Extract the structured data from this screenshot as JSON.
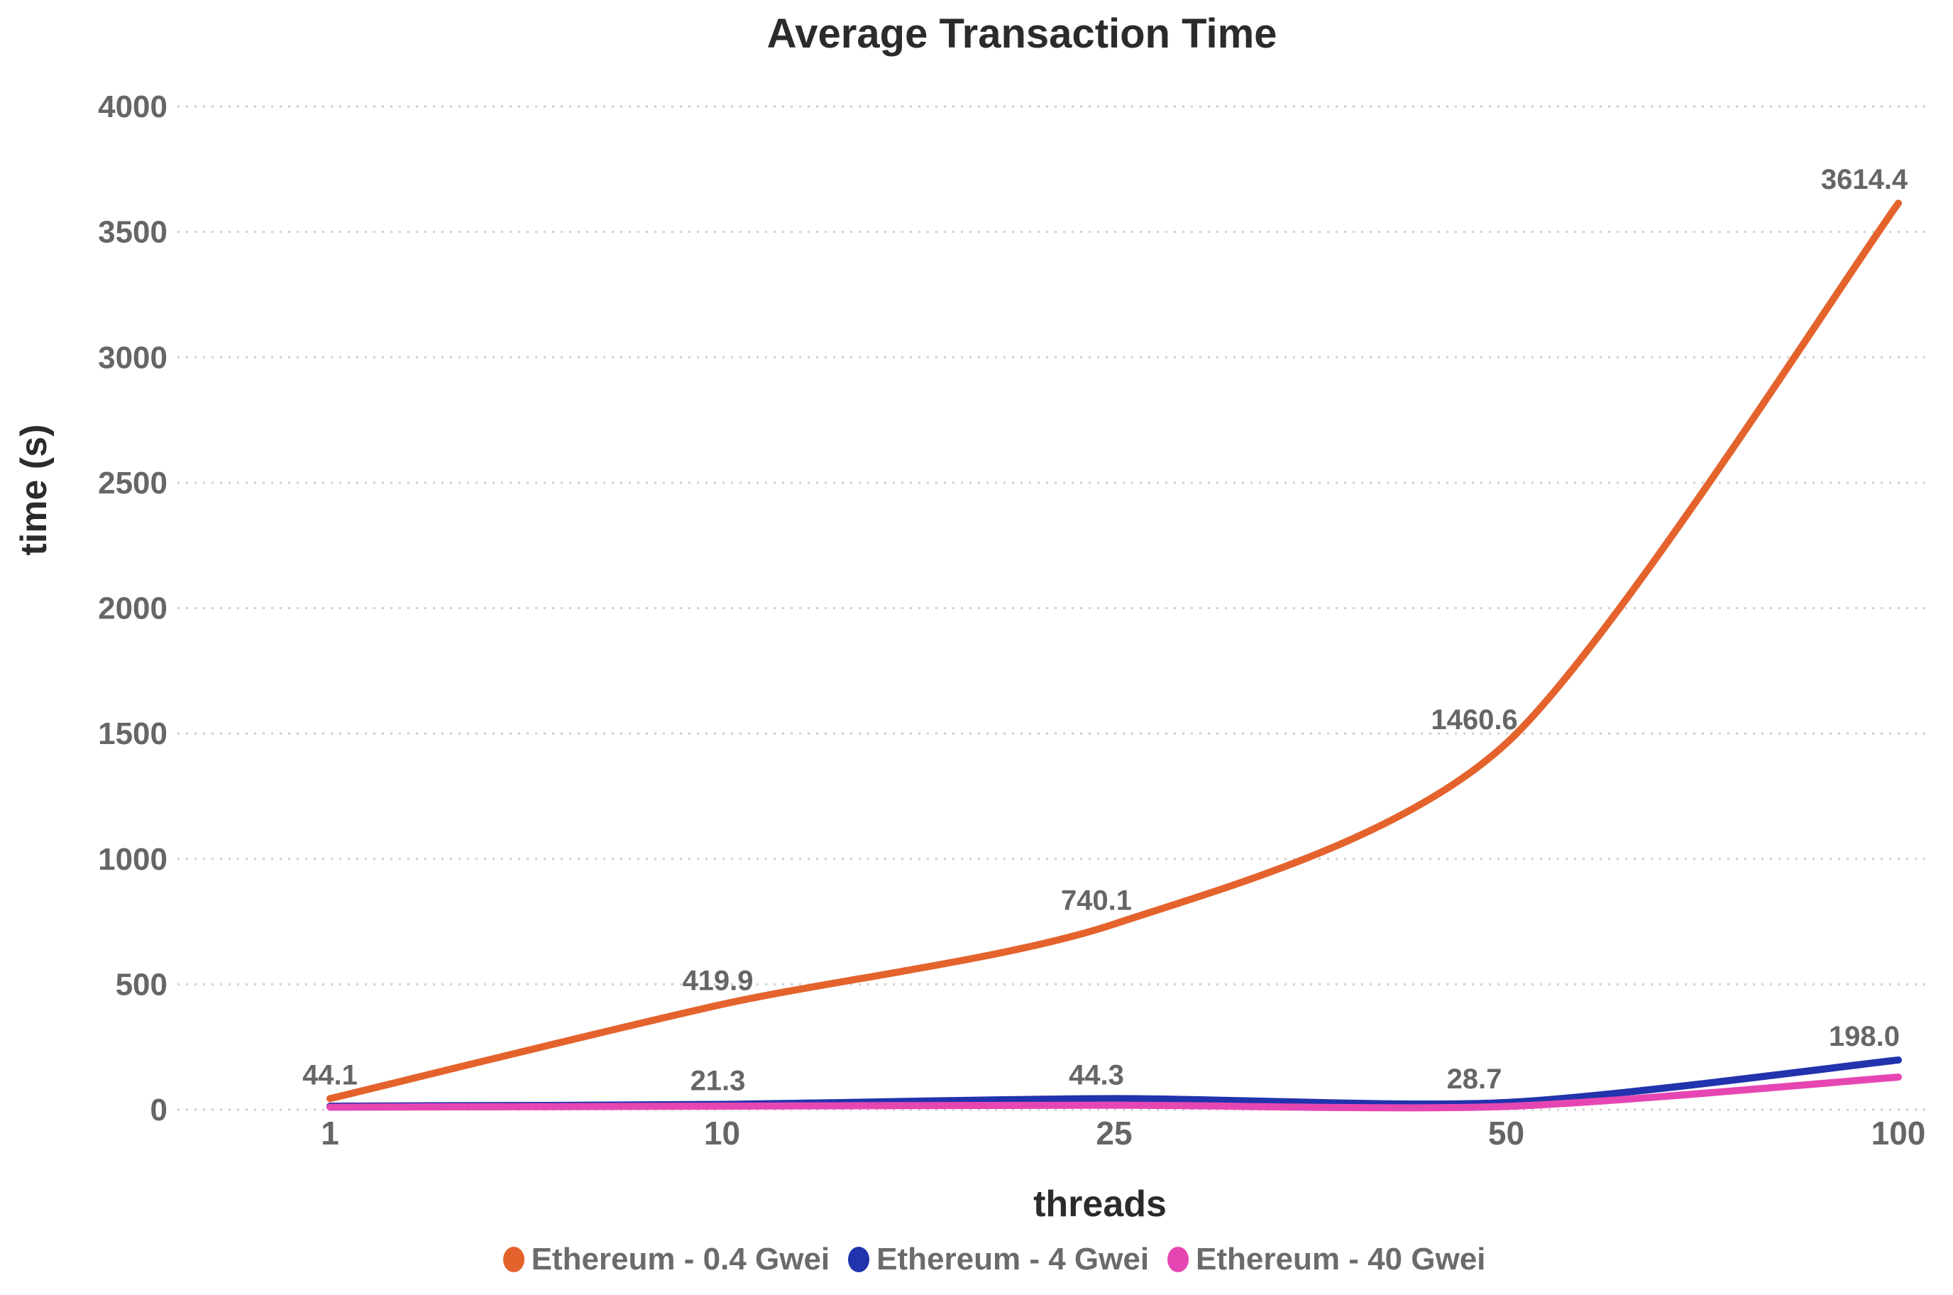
{
  "chart_data": {
    "type": "line",
    "title": "Average Transaction Time",
    "xlabel": "threads",
    "ylabel": "time (s)",
    "categories": [
      "1",
      "10",
      "25",
      "50",
      "100"
    ],
    "y_ticks": [
      0,
      500,
      1000,
      1500,
      2000,
      2500,
      3000,
      3500,
      4000
    ],
    "ylim": [
      0,
      4000
    ],
    "grid": "horizontal dotted gridlines, no axis border",
    "legend_position": "bottom",
    "series": [
      {
        "name": "Ethereum - 0.4 Gwei",
        "color": "#E4632D",
        "values": [
          44.1,
          419.9,
          740.1,
          1460.6,
          3614.4
        ],
        "point_labels": [
          "44.1",
          "419.9",
          "740.1",
          "1460.6",
          "3614.4"
        ]
      },
      {
        "name": "Ethereum - 4 Gwei",
        "color": "#2133AD",
        "values": [
          14,
          21.3,
          44.3,
          28.7,
          198.0
        ],
        "point_labels": [
          null,
          "21.3",
          "44.3",
          "28.7",
          "198.0"
        ]
      },
      {
        "name": "Ethereum - 40 Gwei",
        "color": "#E646B2",
        "values": [
          10,
          14,
          18,
          13,
          130
        ],
        "point_labels": [
          null,
          null,
          null,
          null,
          null
        ]
      }
    ],
    "style_colors": {
      "title_text": "#2b2b2b",
      "axis_title_text": "#2b2b2b",
      "tick_text": "#666666",
      "data_label_text": "#666666",
      "legend_text": "#6b6b6b",
      "gridline": "#cfcfcf",
      "background": "#ffffff"
    }
  }
}
